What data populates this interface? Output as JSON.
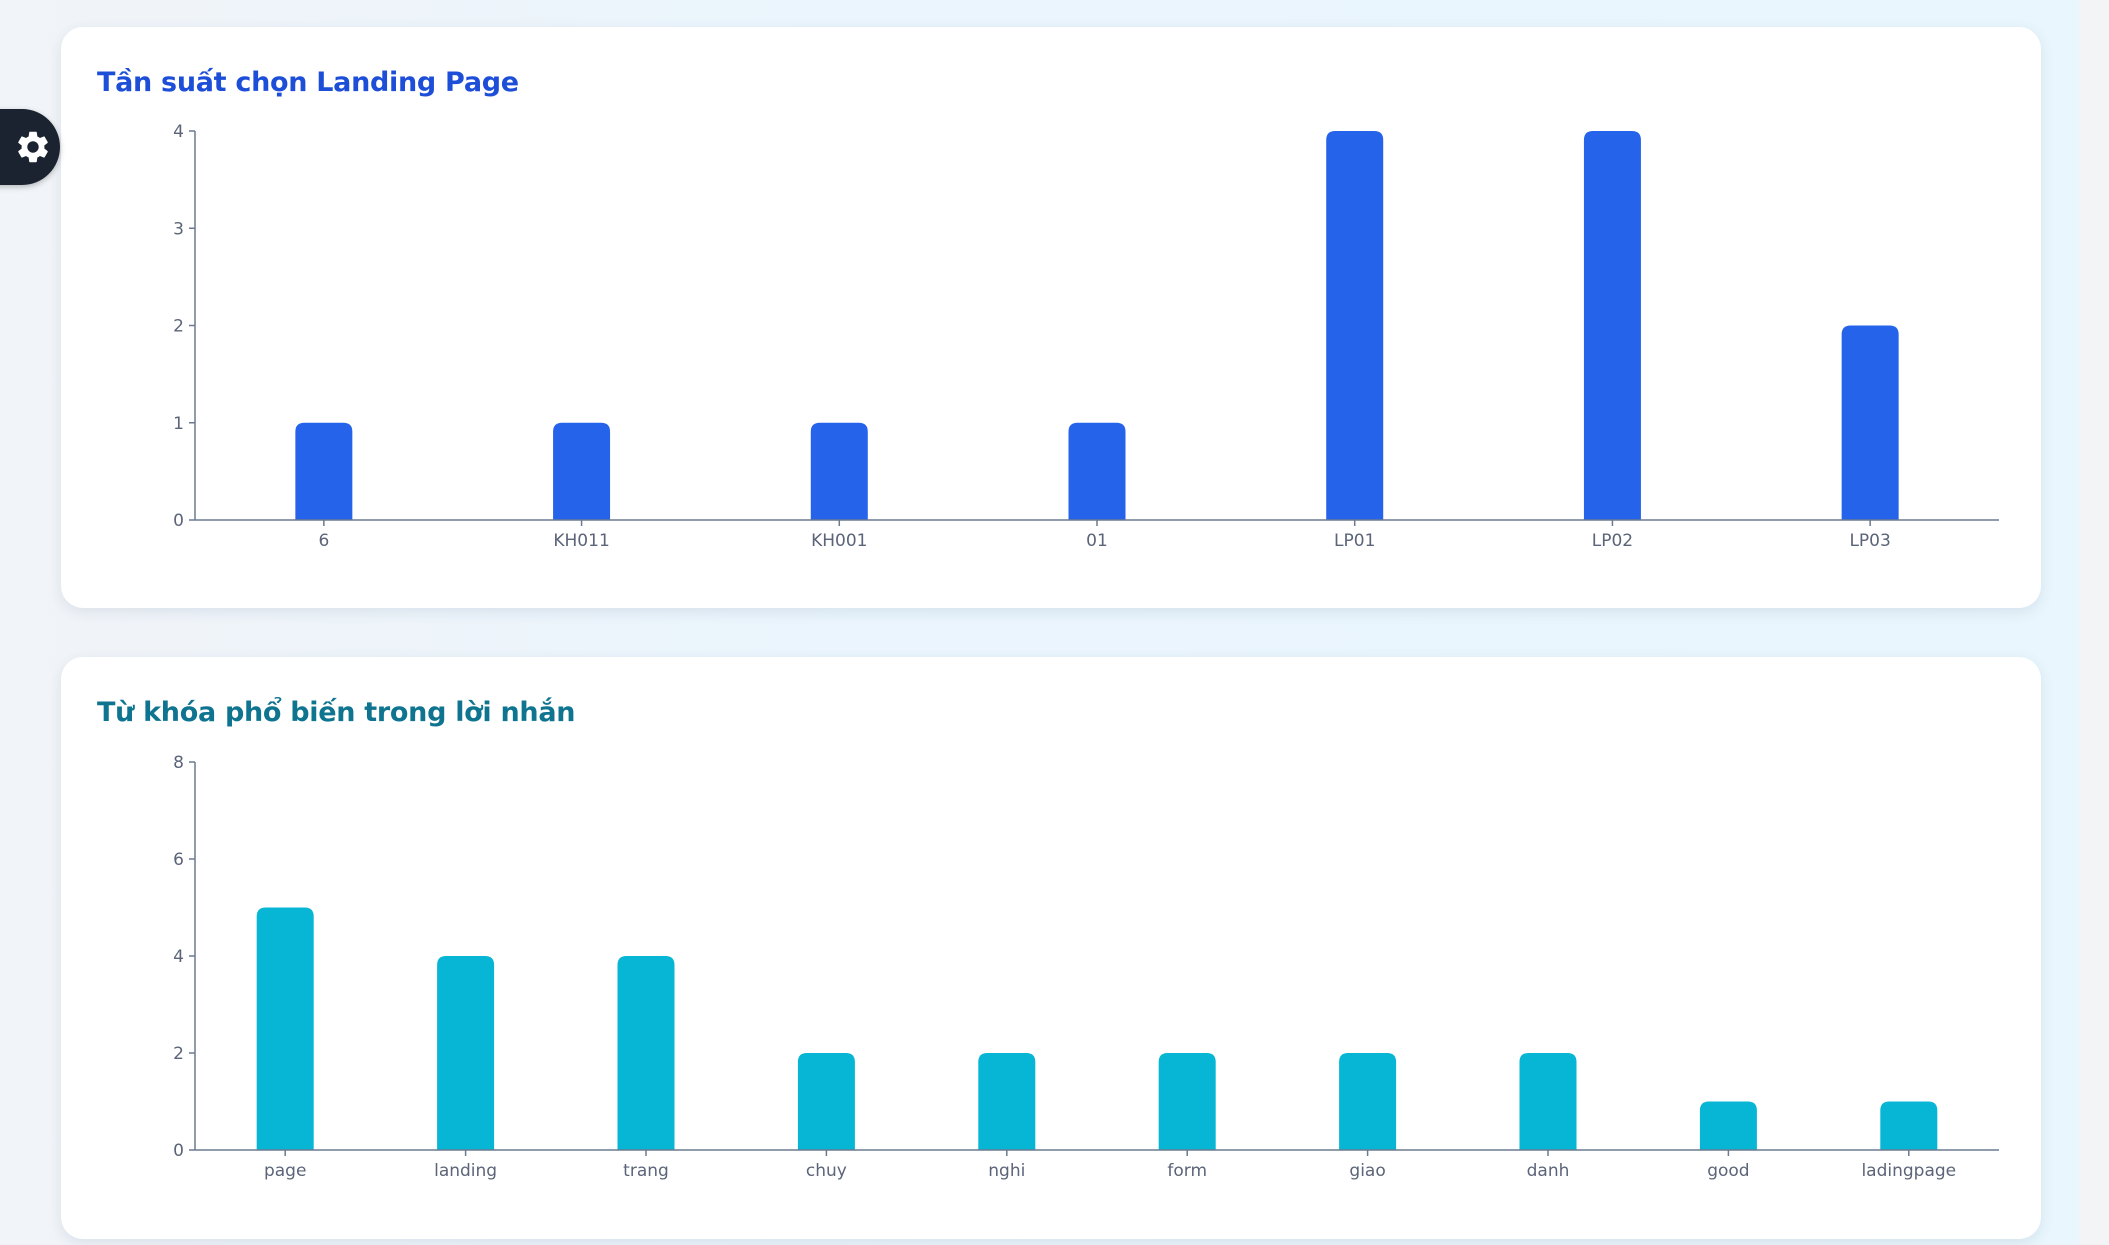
{
  "settings": {
    "icon": "gear-icon"
  },
  "colors": {
    "bar_landing": "#2563eb",
    "bar_keywords": "#06b6d4",
    "axis": "#6b7a90",
    "tick_text": "#5b6478"
  },
  "cards": [
    {
      "title": "Tần suất chọn Landing Page"
    },
    {
      "title": "Từ khóa phổ biến trong lời nhắn"
    }
  ],
  "chart_data": [
    {
      "type": "bar",
      "title": "Tần suất chọn Landing Page",
      "categories": [
        "6",
        "KH011",
        "KH001",
        "01",
        "LP01",
        "LP02",
        "LP03"
      ],
      "values": [
        1,
        1,
        1,
        1,
        4,
        4,
        2
      ],
      "yticks": [
        0,
        1,
        2,
        3,
        4
      ],
      "ylim": [
        0,
        4
      ],
      "grid": false,
      "color": "#2563eb"
    },
    {
      "type": "bar",
      "title": "Từ khóa phổ biến trong lời nhắn",
      "categories": [
        "page",
        "landing",
        "trang",
        "chuy",
        "nghi",
        "form",
        "giao",
        "danh",
        "good",
        "ladingpage"
      ],
      "values": [
        5,
        4,
        4,
        2,
        2,
        2,
        2,
        2,
        1,
        1
      ],
      "yticks": [
        0,
        2,
        4,
        6,
        8
      ],
      "ylim": [
        0,
        8
      ],
      "grid": false,
      "color": "#06b6d4"
    }
  ]
}
